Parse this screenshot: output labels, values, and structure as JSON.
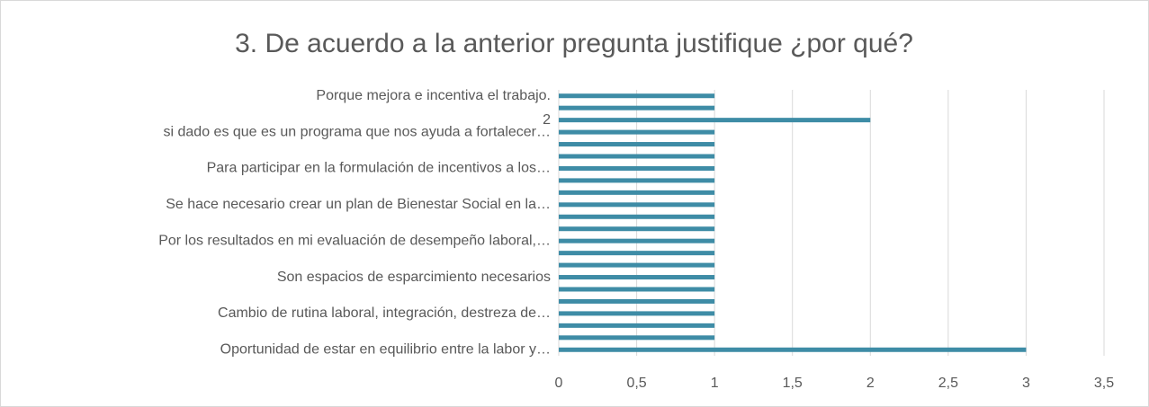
{
  "chart_data": {
    "type": "barh",
    "title": "3. De acuerdo a la anterior pregunta justifique ¿por qué?",
    "categories": [
      "Oportunidad de estar en equilibrio entre la labor y…",
      null,
      null,
      "Cambio de rutina laboral, integración, destreza de…",
      null,
      null,
      "Son espacios de esparcimiento necesarios",
      null,
      null,
      "Por los resultados en mi evaluación de desempeño laboral,…",
      null,
      null,
      "Se hace necesario crear un plan de Bienestar Social en la…",
      null,
      null,
      "Para participar en la formulación de incentivos a los…",
      null,
      null,
      "si dado es que es un programa que nos ayuda a fortalecer…",
      2,
      null,
      "Porque mejora e incentiva el trabajo."
    ],
    "values": [
      3,
      1,
      1,
      1,
      1,
      1,
      1,
      1,
      1,
      1,
      1,
      1,
      1,
      1,
      1,
      1,
      1,
      1,
      1,
      2,
      1,
      1
    ],
    "color": "#3e8ca6",
    "xlim": [
      0,
      3.5
    ],
    "xticks": [
      0,
      {
        "value": 0.5,
        "label": "0,5"
      },
      1,
      {
        "value": 1.5,
        "label": "1,5"
      },
      2,
      {
        "value": 2.5,
        "label": "2,5"
      },
      3,
      {
        "value": 3.5,
        "label": "3,5"
      }
    ],
    "grid": true
  }
}
